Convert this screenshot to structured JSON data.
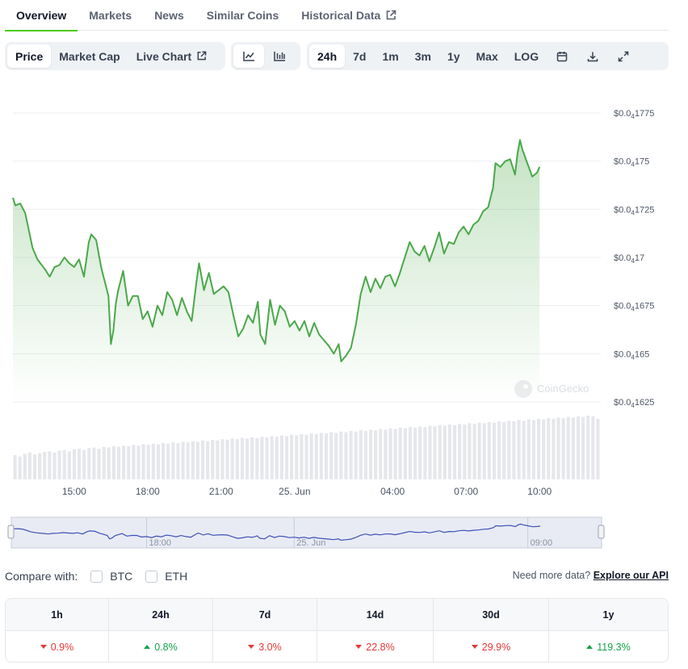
{
  "tabs": [
    {
      "label": "Overview",
      "active": true
    },
    {
      "label": "Markets",
      "active": false
    },
    {
      "label": "News",
      "active": false
    },
    {
      "label": "Similar Coins",
      "active": false
    },
    {
      "label": "Historical Data",
      "active": false,
      "external": true
    }
  ],
  "toolbar": {
    "metric_buttons": [
      {
        "label": "Price",
        "active": true
      },
      {
        "label": "Market Cap",
        "active": false
      },
      {
        "label": "Live Chart",
        "active": false,
        "external": true
      }
    ],
    "chart_type_buttons": [
      {
        "icon": "line-chart-icon",
        "active": true
      },
      {
        "icon": "candlestick-chart-icon",
        "active": false
      }
    ],
    "range_buttons": [
      {
        "label": "24h",
        "active": true
      },
      {
        "label": "7d",
        "active": false
      },
      {
        "label": "1m",
        "active": false
      },
      {
        "label": "3m",
        "active": false
      },
      {
        "label": "1y",
        "active": false
      },
      {
        "label": "Max",
        "active": false
      },
      {
        "label": "LOG",
        "active": false
      }
    ],
    "tool_icons": [
      "calendar-icon",
      "download-icon",
      "expand-icon"
    ]
  },
  "chart_data": {
    "type": "area",
    "watermark": "CoinGecko",
    "y_axis": {
      "ticks": [
        {
          "value": 1.775e-05,
          "prefix": "$0.0",
          "sub": "4",
          "suffix": "1775"
        },
        {
          "value": 1.75e-05,
          "prefix": "$0.0",
          "sub": "4",
          "suffix": "175"
        },
        {
          "value": 1.725e-05,
          "prefix": "$0.0",
          "sub": "4",
          "suffix": "1725"
        },
        {
          "value": 1.7e-05,
          "prefix": "$0.0",
          "sub": "4",
          "suffix": "17"
        },
        {
          "value": 1.675e-05,
          "prefix": "$0.0",
          "sub": "4",
          "suffix": "1675"
        },
        {
          "value": 1.65e-05,
          "prefix": "$0.0",
          "sub": "4",
          "suffix": "165"
        },
        {
          "value": 1.625e-05,
          "prefix": "$0.0",
          "sub": "4",
          "suffix": "1625"
        }
      ],
      "range": [
        1.625e-05,
        1.775e-05
      ]
    },
    "x_axis": {
      "range_hours": [
        12.5,
        36.5
      ],
      "ticks": [
        {
          "hour": 15,
          "label": "15:00"
        },
        {
          "hour": 18,
          "label": "18:00"
        },
        {
          "hour": 21,
          "label": "21:00"
        },
        {
          "hour": 24,
          "label": "25. Jun"
        },
        {
          "hour": 28,
          "label": "04:00"
        },
        {
          "hour": 31,
          "label": "07:00"
        },
        {
          "hour": 34,
          "label": "10:00"
        }
      ]
    },
    "series": [
      {
        "color": "#4aa84a",
        "points": [
          [
            12.5,
            1.731e-05
          ],
          [
            12.6,
            1.727e-05
          ],
          [
            12.8,
            1.728e-05
          ],
          [
            13.0,
            1.723e-05
          ],
          [
            13.3,
            1.705e-05
          ],
          [
            13.5,
            1.699e-05
          ],
          [
            13.8,
            1.694e-05
          ],
          [
            14.0,
            1.69e-05
          ],
          [
            14.2,
            1.695e-05
          ],
          [
            14.4,
            1.696e-05
          ],
          [
            14.6,
            1.7e-05
          ],
          [
            14.8,
            1.697e-05
          ],
          [
            15.0,
            1.695e-05
          ],
          [
            15.2,
            1.699e-05
          ],
          [
            15.4,
            1.69e-05
          ],
          [
            15.6,
            1.708e-05
          ],
          [
            15.7,
            1.712e-05
          ],
          [
            15.9,
            1.709e-05
          ],
          [
            16.1,
            1.695e-05
          ],
          [
            16.2,
            1.69e-05
          ],
          [
            16.4,
            1.68e-05
          ],
          [
            16.5,
            1.655e-05
          ],
          [
            16.6,
            1.662e-05
          ],
          [
            16.7,
            1.676e-05
          ],
          [
            16.8,
            1.683e-05
          ],
          [
            17.0,
            1.693e-05
          ],
          [
            17.2,
            1.675e-05
          ],
          [
            17.4,
            1.68e-05
          ],
          [
            17.6,
            1.68e-05
          ],
          [
            17.8,
            1.668e-05
          ],
          [
            18.0,
            1.672e-05
          ],
          [
            18.2,
            1.664e-05
          ],
          [
            18.4,
            1.675e-05
          ],
          [
            18.6,
            1.67e-05
          ],
          [
            18.8,
            1.682e-05
          ],
          [
            19.0,
            1.678e-05
          ],
          [
            19.2,
            1.67e-05
          ],
          [
            19.4,
            1.679e-05
          ],
          [
            19.6,
            1.672e-05
          ],
          [
            19.8,
            1.667e-05
          ],
          [
            20.0,
            1.688e-05
          ],
          [
            20.1,
            1.697e-05
          ],
          [
            20.3,
            1.683e-05
          ],
          [
            20.5,
            1.692e-05
          ],
          [
            20.7,
            1.681e-05
          ],
          [
            20.9,
            1.683e-05
          ],
          [
            21.1,
            1.685e-05
          ],
          [
            21.3,
            1.682e-05
          ],
          [
            21.5,
            1.67e-05
          ],
          [
            21.7,
            1.659e-05
          ],
          [
            21.9,
            1.663e-05
          ],
          [
            22.1,
            1.67e-05
          ],
          [
            22.3,
            1.666e-05
          ],
          [
            22.5,
            1.677e-05
          ],
          [
            22.6,
            1.66e-05
          ],
          [
            22.8,
            1.655e-05
          ],
          [
            23.0,
            1.678e-05
          ],
          [
            23.2,
            1.665e-05
          ],
          [
            23.4,
            1.675e-05
          ],
          [
            23.6,
            1.672e-05
          ],
          [
            23.8,
            1.664e-05
          ],
          [
            24.0,
            1.667e-05
          ],
          [
            24.2,
            1.662e-05
          ],
          [
            24.4,
            1.667e-05
          ],
          [
            24.6,
            1.659e-05
          ],
          [
            24.8,
            1.666e-05
          ],
          [
            25.0,
            1.66e-05
          ],
          [
            25.2,
            1.657e-05
          ],
          [
            25.4,
            1.654e-05
          ],
          [
            25.6,
            1.65e-05
          ],
          [
            25.8,
            1.655e-05
          ],
          [
            25.9,
            1.646e-05
          ],
          [
            26.1,
            1.649e-05
          ],
          [
            26.3,
            1.653e-05
          ],
          [
            26.5,
            1.665e-05
          ],
          [
            26.7,
            1.681e-05
          ],
          [
            26.9,
            1.69e-05
          ],
          [
            27.1,
            1.682e-05
          ],
          [
            27.3,
            1.689e-05
          ],
          [
            27.5,
            1.684e-05
          ],
          [
            27.7,
            1.69e-05
          ],
          [
            27.9,
            1.691e-05
          ],
          [
            28.1,
            1.685e-05
          ],
          [
            28.3,
            1.692e-05
          ],
          [
            28.5,
            1.7e-05
          ],
          [
            28.7,
            1.708e-05
          ],
          [
            28.9,
            1.703e-05
          ],
          [
            29.1,
            1.701e-05
          ],
          [
            29.3,
            1.706e-05
          ],
          [
            29.5,
            1.698e-05
          ],
          [
            29.7,
            1.705e-05
          ],
          [
            29.9,
            1.713e-05
          ],
          [
            30.1,
            1.702e-05
          ],
          [
            30.3,
            1.708e-05
          ],
          [
            30.5,
            1.707e-05
          ],
          [
            30.7,
            1.713e-05
          ],
          [
            30.9,
            1.716e-05
          ],
          [
            31.1,
            1.712e-05
          ],
          [
            31.3,
            1.717e-05
          ],
          [
            31.5,
            1.719e-05
          ],
          [
            31.7,
            1.724e-05
          ],
          [
            31.9,
            1.726e-05
          ],
          [
            32.1,
            1.736e-05
          ],
          [
            32.2,
            1.749e-05
          ],
          [
            32.4,
            1.747e-05
          ],
          [
            32.6,
            1.75e-05
          ],
          [
            32.8,
            1.751e-05
          ],
          [
            33.0,
            1.743e-05
          ],
          [
            33.1,
            1.754e-05
          ],
          [
            33.2,
            1.761e-05
          ],
          [
            33.3,
            1.756e-05
          ],
          [
            33.5,
            1.749e-05
          ],
          [
            33.7,
            1.742e-05
          ],
          [
            33.9,
            1.744e-05
          ],
          [
            34.0,
            1.747e-05
          ]
        ]
      }
    ],
    "volume": {
      "color": "#e5e7eb",
      "values": [
        38,
        36,
        40,
        42,
        39,
        41,
        43,
        44,
        42,
        45,
        46,
        44,
        47,
        48,
        46,
        49,
        50,
        48,
        51,
        50,
        52,
        51,
        53,
        52,
        54,
        53,
        55,
        54,
        56,
        55,
        57,
        56,
        58,
        57,
        59,
        58,
        60,
        59,
        61,
        60,
        62,
        61,
        63,
        62,
        64,
        63,
        65,
        64,
        66,
        65,
        67,
        66,
        68,
        67,
        69,
        68,
        70,
        69,
        71,
        70,
        72,
        71,
        73,
        72,
        74,
        73,
        75,
        74,
        76,
        75,
        77,
        76,
        78,
        77,
        79,
        78,
        80,
        79,
        81,
        80,
        82,
        81,
        83,
        82,
        84,
        83,
        85,
        84,
        86,
        85,
        87,
        86,
        88,
        87,
        89,
        88,
        90,
        89,
        91,
        90,
        92,
        91,
        93,
        92,
        94,
        93,
        95,
        94,
        96,
        95,
        97,
        96,
        98,
        97,
        99,
        98,
        100,
        99,
        95
      ]
    },
    "navigator": {
      "labels": [
        {
          "hour": 18,
          "label": "18:00"
        },
        {
          "hour": 24,
          "label": "25. Jun"
        },
        {
          "hour": 33.5,
          "label": "09:00"
        }
      ]
    }
  },
  "compare": {
    "label": "Compare with:",
    "options": [
      {
        "label": "BTC",
        "checked": false
      },
      {
        "label": "ETH",
        "checked": false
      }
    ]
  },
  "api": {
    "text": "Need more data?",
    "link": "Explore our API"
  },
  "performance": {
    "headers": [
      "1h",
      "24h",
      "7d",
      "14d",
      "30d",
      "1y"
    ],
    "values": [
      {
        "text": "0.9%",
        "dir": "down"
      },
      {
        "text": "0.8%",
        "dir": "up"
      },
      {
        "text": "3.0%",
        "dir": "down"
      },
      {
        "text": "22.8%",
        "dir": "down"
      },
      {
        "text": "29.9%",
        "dir": "down"
      },
      {
        "text": "119.3%",
        "dir": "up"
      }
    ]
  }
}
